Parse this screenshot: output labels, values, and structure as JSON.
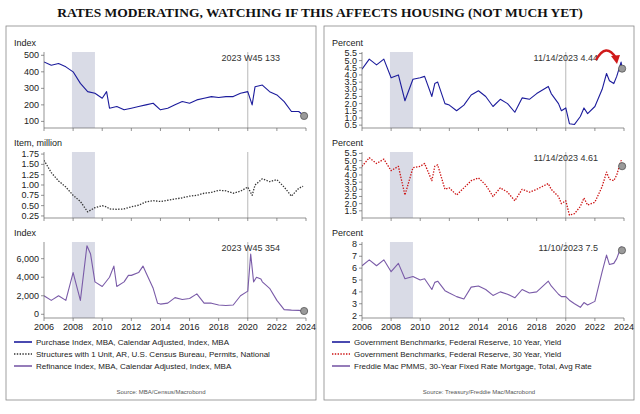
{
  "page": {
    "title": "RATES MODERATING, WATCHING IF THIS AFFECTS HOUSING (NOT MUCH YET)",
    "sources": [
      "Source: MBA/Census/Macrobond",
      "Source: Treasury/Freddie Mac/Macrobond"
    ]
  },
  "chart_data": [
    {
      "type": "line",
      "ylabel": "Index",
      "annotation": "2023 W45 133",
      "legend": "bottom",
      "grid": false,
      "tick_labels": "y",
      "xlim": [
        2006,
        2024
      ],
      "xticks": [
        2006,
        2008,
        2010,
        2012,
        2014,
        2016,
        2018,
        2020,
        2022,
        2024
      ],
      "ylim": [
        60,
        520
      ],
      "yticks": [
        100,
        200,
        300,
        400,
        500
      ],
      "shaded_range": [
        2007.92,
        2009.5
      ],
      "vline": 2020,
      "x": [
        2006,
        2006.5,
        2007,
        2007.5,
        2008,
        2008.5,
        2009,
        2009.5,
        2010,
        2010.3,
        2010.5,
        2011,
        2011.5,
        2012,
        2012.5,
        2013,
        2013.5,
        2014,
        2014.5,
        2015,
        2015.5,
        2016,
        2016.5,
        2017,
        2017.5,
        2018,
        2018.5,
        2019,
        2019.5,
        2020,
        2020.3,
        2020.5,
        2021,
        2021.5,
        2022,
        2022.5,
        2023,
        2023.5,
        2023.87
      ],
      "series": [
        {
          "name": "Purchase Index, MBA, Calendar Adjusted, Index, MBA",
          "color": "#1c1c9c",
          "line_style": "solid",
          "values": [
            460,
            440,
            450,
            430,
            400,
            330,
            280,
            270,
            240,
            280,
            180,
            190,
            170,
            180,
            190,
            200,
            210,
            170,
            180,
            200,
            220,
            210,
            230,
            240,
            250,
            245,
            250,
            250,
            270,
            280,
            200,
            310,
            320,
            280,
            260,
            220,
            160,
            160,
            133
          ]
        }
      ]
    },
    {
      "type": "line",
      "ylabel": "Item, million",
      "legend": "bottom",
      "grid": false,
      "tick_labels": "y",
      "xlim": [
        2006,
        2024
      ],
      "xticks": [
        2006,
        2008,
        2010,
        2012,
        2014,
        2016,
        2018,
        2020,
        2022,
        2024
      ],
      "ylim": [
        0.2,
        1.8
      ],
      "yticks": [
        0.25,
        {
          "value": 0.5,
          "label": "0.50"
        },
        0.75,
        {
          "value": 1,
          "label": "1.00"
        },
        1.25,
        {
          "value": 1.5,
          "label": "1.50"
        },
        1.75
      ],
      "shaded_range": [
        2007.92,
        2009.5
      ],
      "vline": 2020,
      "x": [
        2006,
        2006.5,
        2007,
        2007.5,
        2008,
        2008.5,
        2009,
        2009.5,
        2010,
        2010.3,
        2010.5,
        2011,
        2011.5,
        2012,
        2012.5,
        2013,
        2013.5,
        2014,
        2014.5,
        2015,
        2015.5,
        2016,
        2016.5,
        2017,
        2017.5,
        2018,
        2018.5,
        2019,
        2019.5,
        2020,
        2020.3,
        2020.5,
        2021,
        2021.5,
        2022,
        2022.5,
        2023,
        2023.5,
        2023.8
      ],
      "series": [
        {
          "name": "Structures with 1 Unit, AR, U.S. Census Bureau, Permits, National",
          "color": "#333333",
          "line_style": "dotted",
          "values": [
            1.6,
            1.3,
            1.1,
            0.95,
            0.75,
            0.6,
            0.35,
            0.45,
            0.5,
            0.47,
            0.42,
            0.41,
            0.42,
            0.47,
            0.51,
            0.59,
            0.62,
            0.6,
            0.63,
            0.66,
            0.69,
            0.73,
            0.75,
            0.8,
            0.82,
            0.87,
            0.86,
            0.8,
            0.85,
            0.95,
            0.75,
            1.0,
            1.15,
            1.08,
            1.13,
            0.95,
            0.73,
            0.92,
            0.97
          ]
        }
      ]
    },
    {
      "type": "line",
      "ylabel": "Index",
      "annotation": "2023 W45 354",
      "legend": "bottom",
      "grid": false,
      "xlim": [
        2006,
        2024
      ],
      "xticks": [
        2006,
        2008,
        2010,
        2012,
        2014,
        2016,
        2018,
        2020,
        2022,
        2024
      ],
      "ylim": [
        -400,
        7800
      ],
      "yticks": [
        0,
        {
          "value": 2000,
          "label": "2,000"
        },
        {
          "value": 4000,
          "label": "4,000"
        },
        {
          "value": 6000,
          "label": "6,000"
        }
      ],
      "shaded_range": [
        2007.92,
        2009.5
      ],
      "vline": 2020,
      "x": [
        2006,
        2006.5,
        2007,
        2007.5,
        2008,
        2008.5,
        2008.95,
        2009.2,
        2009.5,
        2010,
        2010.5,
        2010.8,
        2011,
        2011.5,
        2011.8,
        2012,
        2012.5,
        2012.8,
        2013,
        2013.5,
        2013.8,
        2014,
        2014.5,
        2015,
        2015.5,
        2016,
        2016.5,
        2017,
        2017.5,
        2018,
        2018.5,
        2019,
        2019.5,
        2020,
        2020.2,
        2020.4,
        2020.6,
        2020.9,
        2021,
        2021.5,
        2022,
        2022.5,
        2023,
        2023.5,
        2023.87
      ],
      "series": [
        {
          "name": "Refinance Index, MBA, Calendar Adjusted, Index, MBA",
          "color": "#7a5ba8",
          "line_style": "solid",
          "values": [
            2000,
            1500,
            2000,
            1500,
            4500,
            1500,
            7400,
            6500,
            3500,
            3000,
            4000,
            5200,
            3000,
            3500,
            4200,
            4200,
            4500,
            5200,
            4500,
            2800,
            1200,
            1100,
            1200,
            1800,
            1600,
            1700,
            2200,
            1200,
            1200,
            1000,
            950,
            1000,
            2000,
            2500,
            6500,
            3500,
            4000,
            3800,
            3500,
            2800,
            1500,
            500,
            450,
            420,
            354
          ]
        }
      ]
    },
    {
      "type": "line",
      "ylabel": "Percent",
      "annotation": "11/14/2023 4.44",
      "legend": "bottom",
      "grid": false,
      "tick_labels": "y",
      "xlim": [
        2006,
        2024
      ],
      "xticks": [
        2006,
        2008,
        2010,
        2012,
        2014,
        2016,
        2018,
        2020,
        2022,
        2024
      ],
      "ylim": [
        0.3,
        5.6
      ],
      "yticks": [
        0.5,
        {
          "value": 1,
          "label": "1.0"
        },
        1.5,
        {
          "value": 2,
          "label": "2.0"
        },
        2.5,
        {
          "value": 3,
          "label": "3.0"
        },
        3.5,
        {
          "value": 4,
          "label": "4.0"
        },
        4.5,
        {
          "value": 5,
          "label": "5.0"
        },
        5.5
      ],
      "shaded_range": [
        2007.92,
        2009.5
      ],
      "vline": 2020,
      "x": [
        2006,
        2006.5,
        2007,
        2007.5,
        2008,
        2008.5,
        2008.95,
        2009.5,
        2010,
        2010.3,
        2010.8,
        2011,
        2011.2,
        2011.7,
        2012,
        2012.5,
        2013,
        2013.5,
        2014,
        2014.5,
        2015,
        2015.5,
        2016,
        2016.5,
        2017,
        2017.5,
        2018,
        2018.8,
        2019,
        2019.5,
        2019.7,
        2020,
        2020.25,
        2020.6,
        2021,
        2021.25,
        2021.5,
        2022,
        2022.5,
        2022.8,
        2023,
        2023.3,
        2023.5,
        2023.8,
        2023.87
      ],
      "series": [
        {
          "name": "Government Benchmarks, Federal Reserve, 10 Year, Yield",
          "color": "#1c1c9c",
          "line_style": "solid",
          "values": [
            4.4,
            5.1,
            4.7,
            5.1,
            3.8,
            4.0,
            2.2,
            3.7,
            3.8,
            3.9,
            2.5,
            3.4,
            3.5,
            2.0,
            1.9,
            1.5,
            1.9,
            2.6,
            2.9,
            2.5,
            1.8,
            2.3,
            2.0,
            1.4,
            2.4,
            2.3,
            2.7,
            3.2,
            2.7,
            2.0,
            1.5,
            1.7,
            0.6,
            0.55,
            1.1,
            1.7,
            1.3,
            1.8,
            3.0,
            4.1,
            3.6,
            3.4,
            3.9,
            4.9,
            4.44
          ]
        }
      ]
    },
    {
      "type": "line",
      "ylabel": "Percent",
      "annotation": "11/14/2023 4.61",
      "legend": "bottom",
      "grid": false,
      "tick_labels": "y",
      "xlim": [
        2006,
        2024
      ],
      "xticks": [
        2006,
        2008,
        2010,
        2012,
        2014,
        2016,
        2018,
        2020,
        2022,
        2024
      ],
      "ylim": [
        1.0,
        5.6
      ],
      "yticks": [
        1.5,
        {
          "value": 2,
          "label": "2.0"
        },
        2.5,
        {
          "value": 3,
          "label": "3.0"
        },
        3.5,
        {
          "value": 4,
          "label": "4.0"
        },
        4.5,
        {
          "value": 5,
          "label": "5.0"
        },
        5.5
      ],
      "shaded_range": [
        2007.92,
        2009.5
      ],
      "vline": 2020,
      "x": [
        2006,
        2006.5,
        2007,
        2007.5,
        2008,
        2008.5,
        2008.95,
        2009.5,
        2010,
        2010.3,
        2010.8,
        2011,
        2011.2,
        2011.7,
        2012,
        2012.5,
        2013,
        2013.5,
        2014,
        2014.5,
        2015,
        2015.5,
        2016,
        2016.5,
        2017,
        2017.5,
        2018,
        2018.8,
        2019,
        2019.5,
        2019.7,
        2020,
        2020.25,
        2020.6,
        2021,
        2021.25,
        2021.5,
        2022,
        2022.5,
        2022.8,
        2023,
        2023.3,
        2023.5,
        2023.8,
        2023.87
      ],
      "series": [
        {
          "name": "Government Benchmarks, Federal Reserve, 30 Year, Yield",
          "color": "#cc1111",
          "line_style": "dotted",
          "values": [
            4.6,
            5.2,
            4.8,
            5.1,
            4.3,
            4.6,
            2.6,
            4.5,
            4.6,
            4.8,
            3.6,
            4.6,
            4.7,
            3.0,
            3.1,
            2.6,
            3.1,
            3.6,
            3.8,
            3.3,
            2.5,
            3.1,
            2.8,
            2.2,
            3.0,
            2.8,
            3.0,
            3.4,
            3.0,
            2.5,
            2.0,
            2.2,
            1.2,
            1.3,
            1.8,
            2.4,
            1.9,
            2.1,
            3.2,
            4.2,
            3.7,
            3.6,
            4.0,
            5.0,
            4.61
          ]
        }
      ]
    },
    {
      "type": "line",
      "ylabel": "Percent",
      "annotation": "11/10/2023 7.5",
      "legend": "bottom",
      "grid": false,
      "xlim": [
        2006,
        2024
      ],
      "xticks": [
        2006,
        2008,
        2010,
        2012,
        2014,
        2016,
        2018,
        2020,
        2022,
        2024
      ],
      "ylim": [
        1.8,
        8.2
      ],
      "yticks": [
        2,
        3,
        4,
        5,
        6,
        7,
        8
      ],
      "shaded_range": [
        2007.92,
        2009.5
      ],
      "vline": 2020,
      "x": [
        2006,
        2006.5,
        2007,
        2007.5,
        2008,
        2008.5,
        2008.95,
        2009.5,
        2010,
        2010.3,
        2010.8,
        2011,
        2011.2,
        2011.7,
        2012,
        2012.5,
        2013,
        2013.5,
        2014,
        2014.5,
        2015,
        2015.5,
        2016,
        2016.5,
        2017,
        2017.5,
        2018,
        2018.8,
        2019,
        2019.5,
        2019.7,
        2020,
        2020.25,
        2020.6,
        2021,
        2021.25,
        2021.5,
        2022,
        2022.5,
        2022.8,
        2023,
        2023.3,
        2023.5,
        2023.8,
        2023.86
      ],
      "series": [
        {
          "name": "Freddie Mac PMMS, 30-Year Fixed Rate Mortgage, Total, Avg Rate",
          "color": "#7a5ba8",
          "line_style": "solid",
          "values": [
            6.2,
            6.7,
            6.2,
            6.7,
            5.7,
            6.4,
            5.1,
            5.3,
            5.0,
            5.1,
            4.2,
            4.8,
            4.9,
            4.1,
            3.9,
            3.6,
            3.4,
            4.4,
            4.5,
            4.2,
            3.7,
            4.0,
            3.8,
            3.5,
            4.2,
            3.9,
            4.0,
            4.9,
            4.5,
            3.8,
            3.6,
            3.6,
            3.3,
            3.0,
            2.7,
            3.1,
            2.9,
            3.2,
            5.7,
            7.1,
            6.3,
            6.4,
            6.8,
            7.8,
            7.5
          ]
        }
      ]
    }
  ]
}
